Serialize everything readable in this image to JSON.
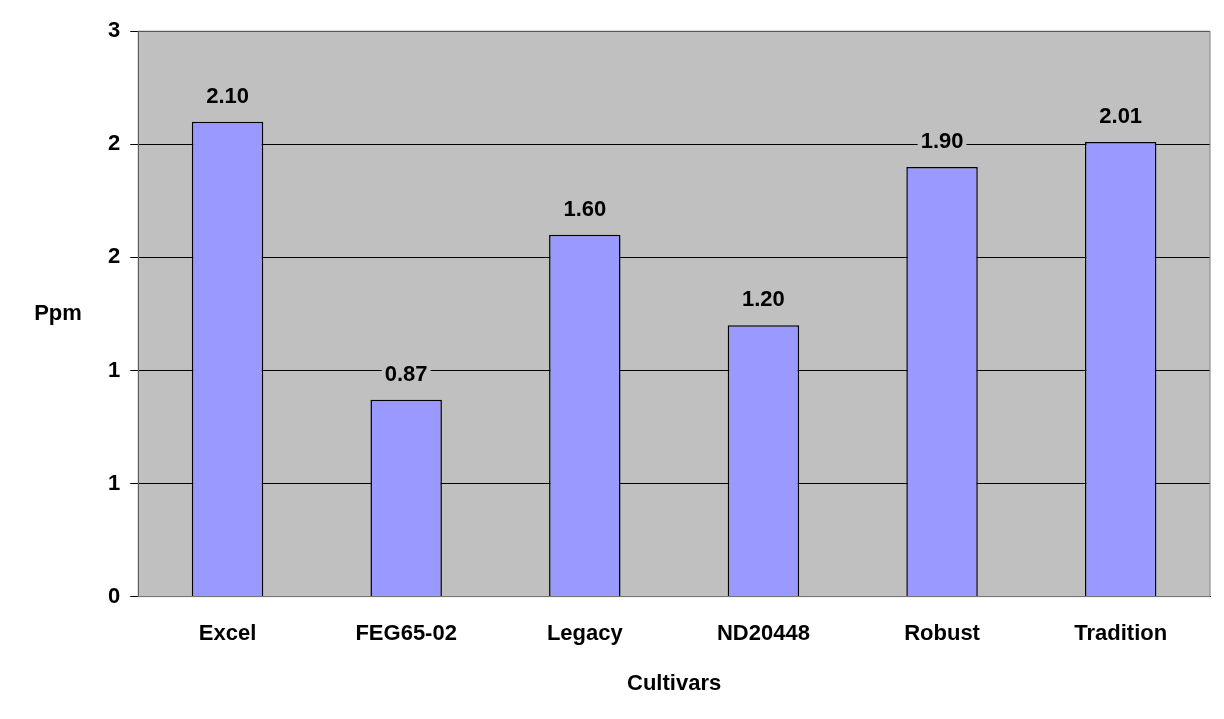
{
  "chart_data": {
    "type": "bar",
    "xlabel": "Cultivars",
    "ylabel": "Ppm",
    "categories": [
      "Excel",
      "FEG65-02",
      "Legacy",
      "ND20448",
      "Robust",
      "Tradition"
    ],
    "values": [
      2.1,
      0.87,
      1.6,
      1.2,
      1.9,
      2.01
    ],
    "value_labels": [
      "2.10",
      "0.87",
      "1.60",
      "1.20",
      "1.90",
      "2.01"
    ],
    "color": "#9999ff",
    "ylim": [
      0,
      2.5
    ],
    "yticks": [
      0,
      {
        "value": 0.5,
        "label": "1"
      },
      {
        "value": 1,
        "label": "1"
      },
      {
        "value": 1.5,
        "label": "2"
      },
      {
        "value": 2,
        "label": "2"
      },
      {
        "value": 2.5,
        "label": "3"
      }
    ],
    "grid": "y",
    "legend": false
  }
}
